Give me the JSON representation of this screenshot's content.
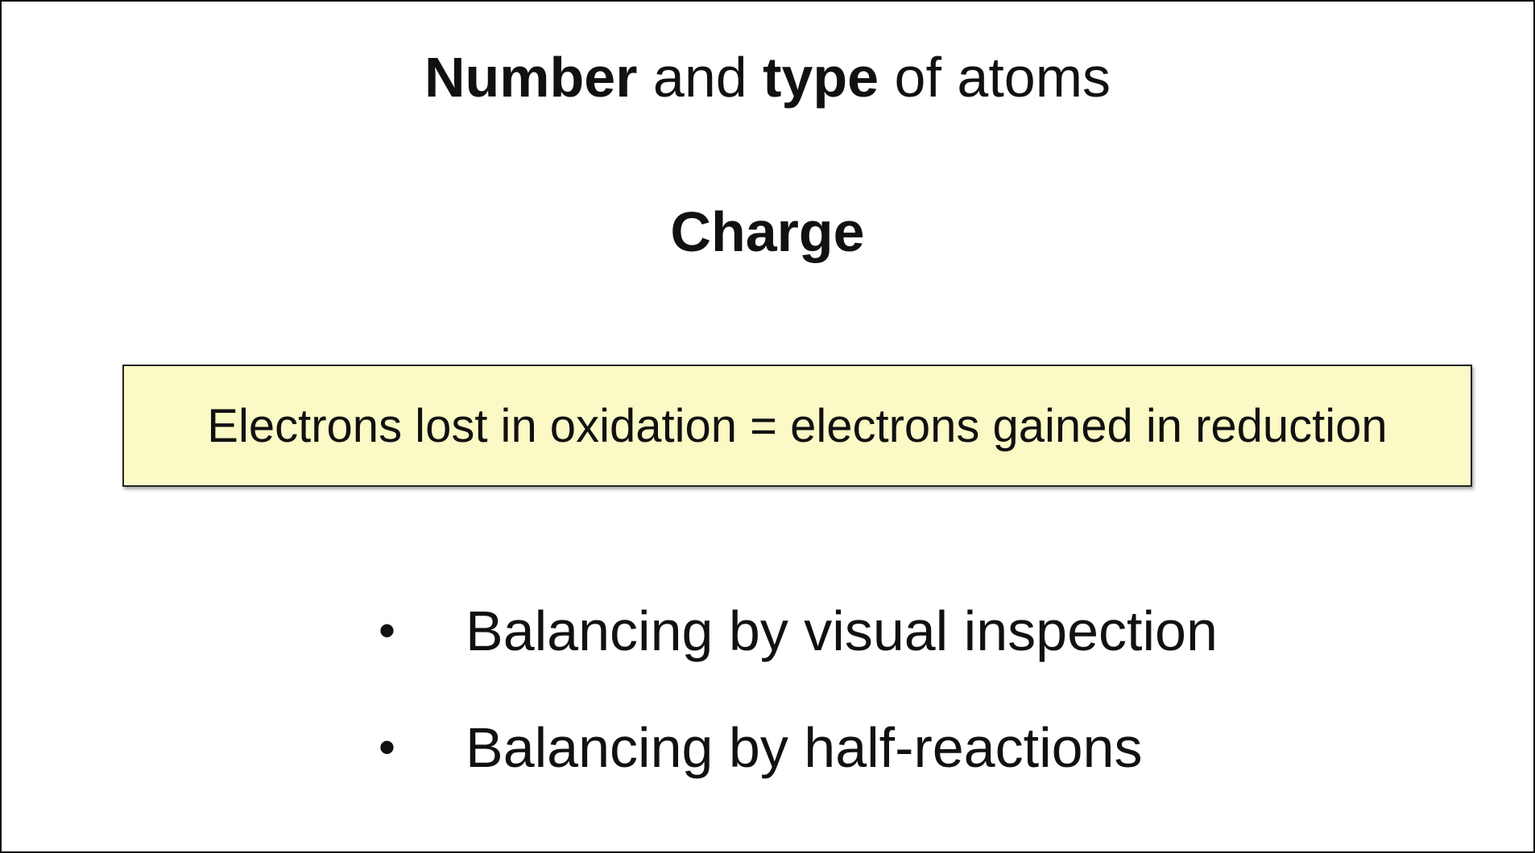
{
  "heading_line": {
    "part1": "Number",
    "part2": " and ",
    "part3": "type",
    "part4": " of atoms"
  },
  "charge_heading": "Charge",
  "callout": {
    "text": "Electrons lost in oxidation = electrons gained in reduction",
    "background_color": "#fbfac6"
  },
  "bullets": [
    {
      "marker": "•",
      "text": "Balancing by visual inspection"
    },
    {
      "marker": "•",
      "text": "Balancing by half-reactions"
    }
  ]
}
